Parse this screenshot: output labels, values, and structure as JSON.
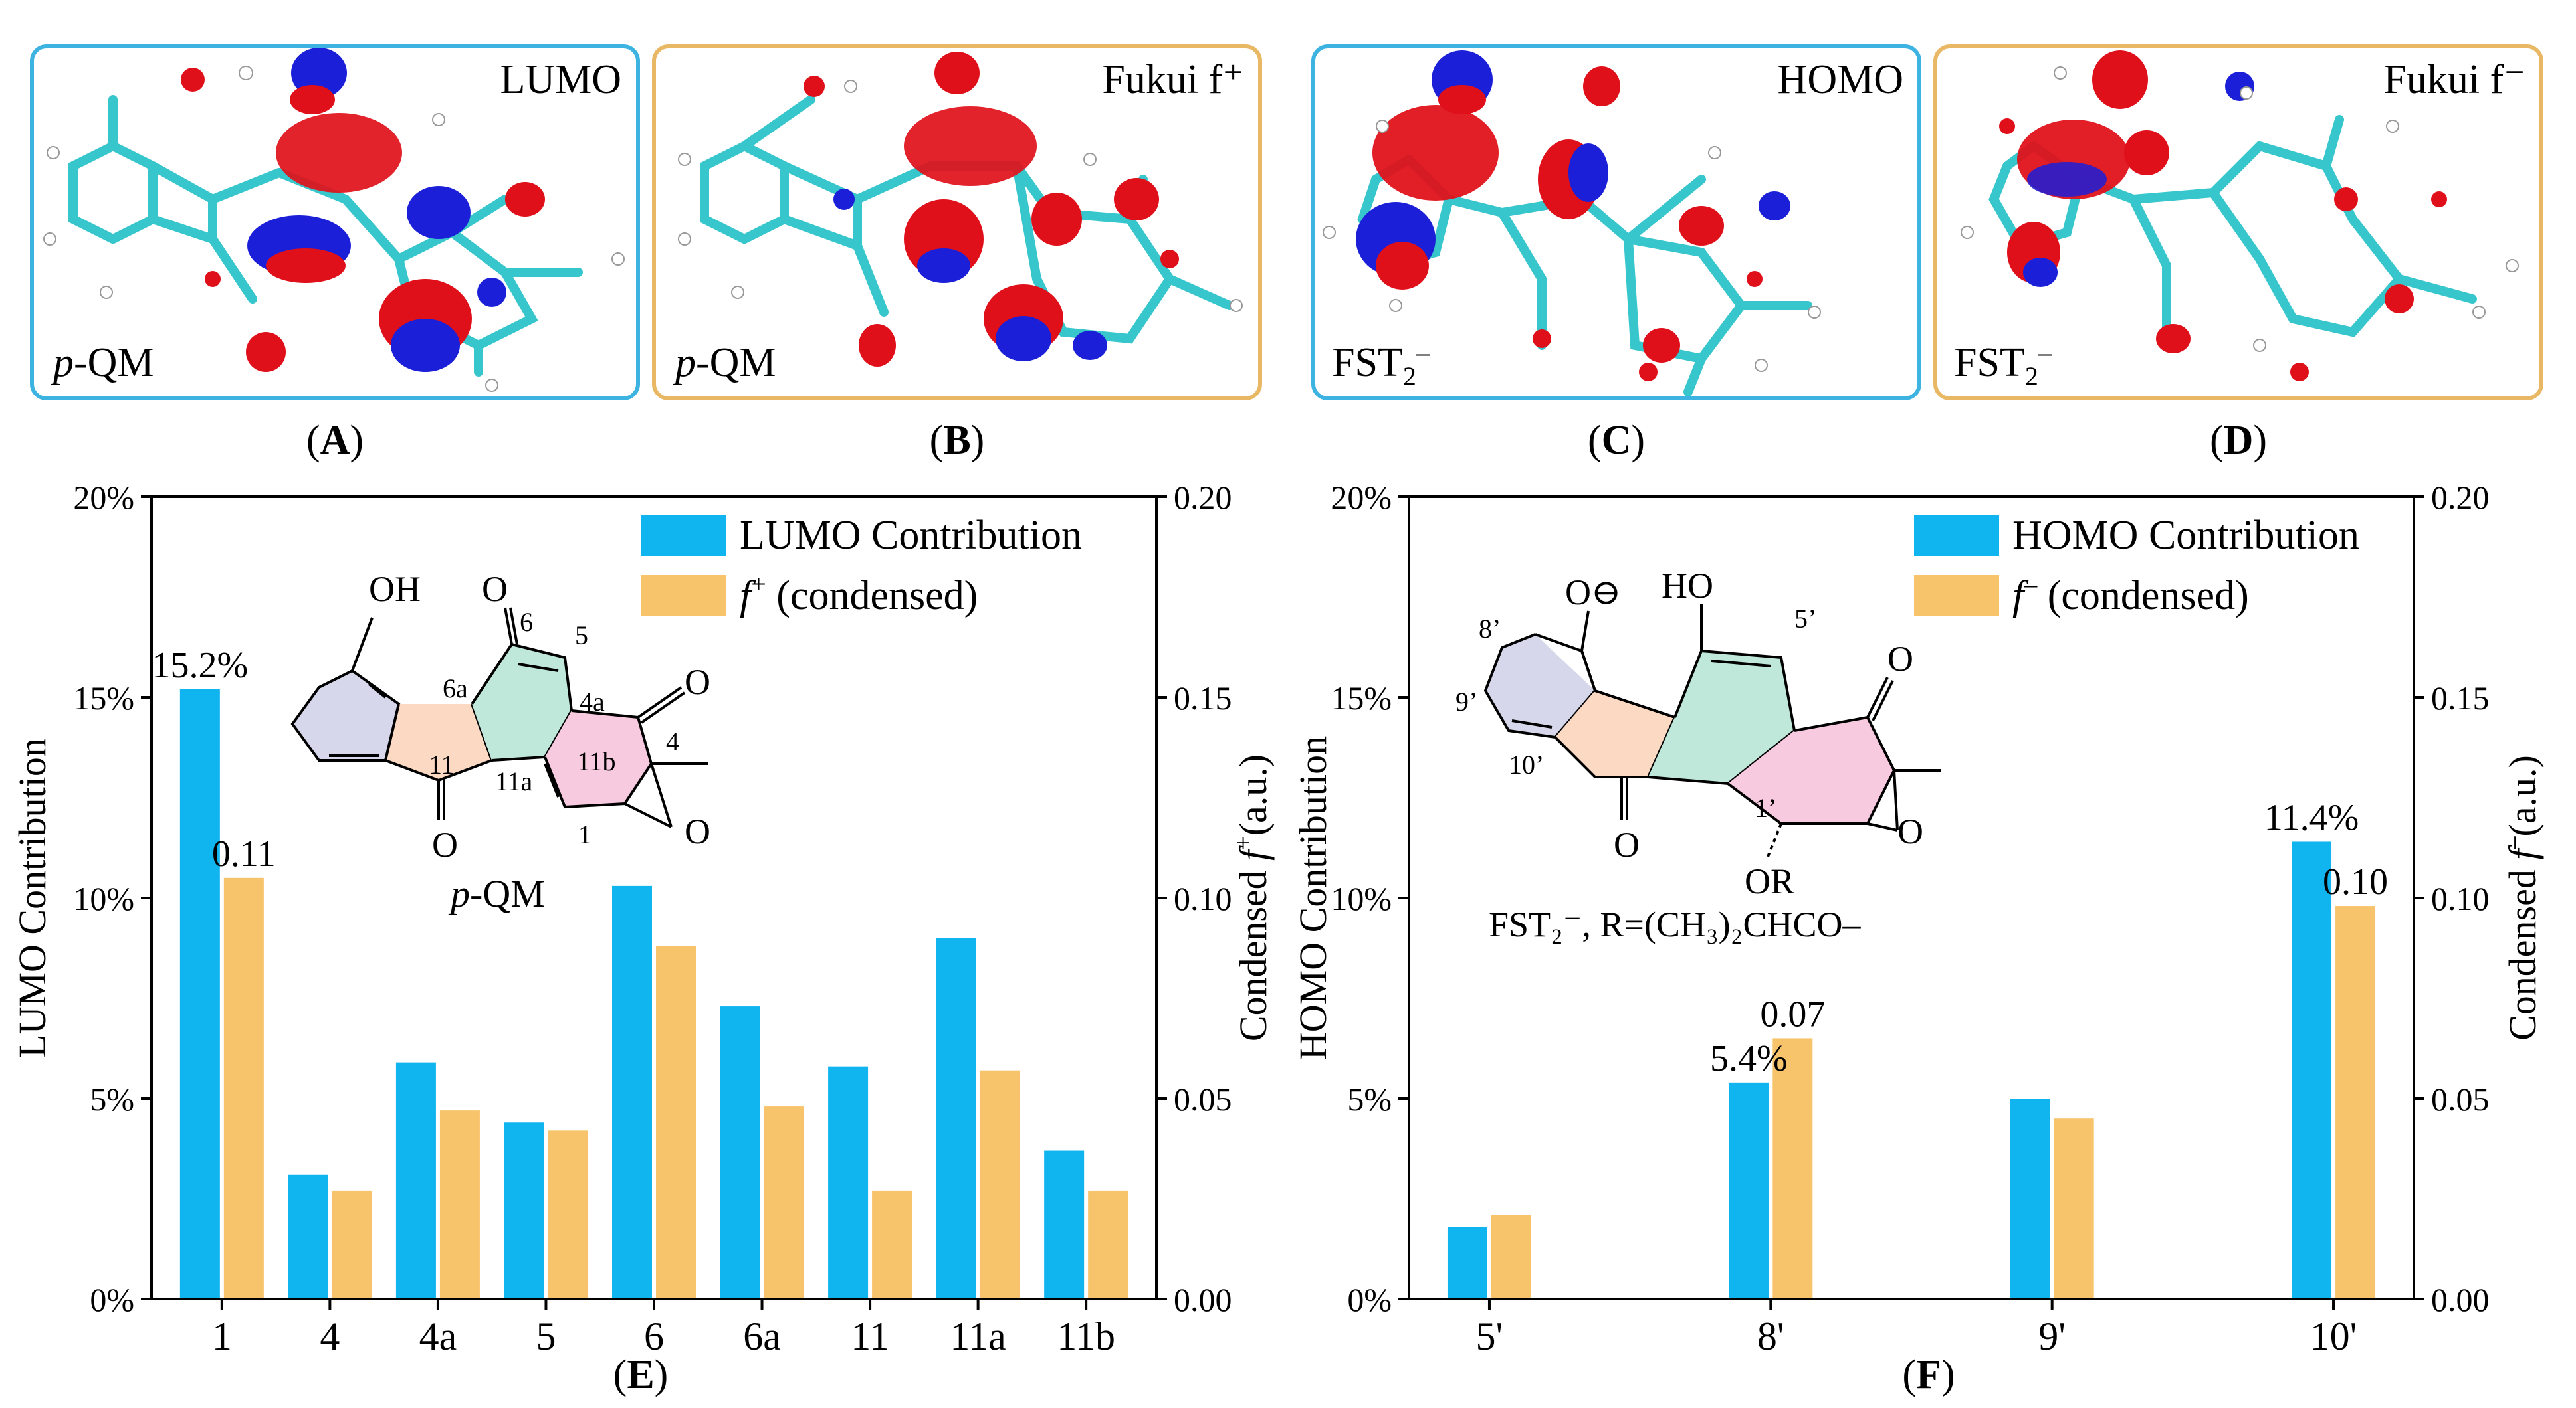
{
  "colors": {
    "blue_bar": "#10B5F0",
    "orange_bar": "#F7C46C",
    "panel_border_blue": "#3DB3E2",
    "panel_border_orange": "#E9B865",
    "atom_carbon": "#36C6CC",
    "lobe_red": "#E0101A",
    "lobe_blue": "#1B1FD8"
  },
  "panels": [
    {
      "id": "A",
      "caption": "A",
      "orbital_label": "LUMO",
      "molecule_label": "p-QM",
      "border": "blue"
    },
    {
      "id": "B",
      "caption": "B",
      "orbital_label": "Fukui f⁺",
      "molecule_label": "p-QM",
      "border": "orange"
    },
    {
      "id": "C",
      "caption": "C",
      "orbital_label": "HOMO",
      "molecule_label": "FST₂⁻",
      "border": "blue"
    },
    {
      "id": "D",
      "caption": "D",
      "orbital_label": "Fukui f⁻",
      "molecule_label": "FST₂⁻",
      "border": "orange"
    }
  ],
  "chart_data": [
    {
      "id": "E",
      "caption": "E",
      "type": "bar",
      "categories": [
        "1",
        "4",
        "4a",
        "5",
        "6",
        "6a",
        "11",
        "11a",
        "11b"
      ],
      "series": [
        {
          "name": "LUMO Contribution",
          "axis": "left",
          "unit": "%",
          "values": [
            15.2,
            3.1,
            5.9,
            4.4,
            10.3,
            7.3,
            5.8,
            9.0,
            3.7
          ]
        },
        {
          "name": "f⁺ (condensed)",
          "axis": "right",
          "values": [
            0.105,
            0.027,
            0.047,
            0.042,
            0.088,
            0.048,
            0.027,
            0.057,
            0.027
          ]
        }
      ],
      "annotations": [
        {
          "series": 0,
          "index": 0,
          "text": "15.2%"
        },
        {
          "series": 1,
          "index": 0,
          "text": "0.11"
        }
      ],
      "ylabel_left": "LUMO Contribution",
      "ylabel_right": "Condensed f⁺ (a.u.)",
      "ylim_left": [
        0,
        20
      ],
      "ylim_right": [
        0,
        0.2
      ],
      "yticks_left": [
        "0%",
        "5%",
        "10%",
        "15%",
        "20%"
      ],
      "yticks_right": [
        "0.00",
        "0.05",
        "0.10",
        "0.15",
        "0.20"
      ],
      "structure_labels": {
        "oh": "OH",
        "o6": "O",
        "n5": "5",
        "n6": "6",
        "n6a": "6a",
        "n4a": "4a",
        "o4": "O",
        "n4": "4",
        "n11": "11",
        "n11a": "11a",
        "n11b": "11b",
        "n1": "1",
        "o11": "O",
        "oep": "O",
        "name": "p-QM"
      }
    },
    {
      "id": "F",
      "caption": "F",
      "type": "bar",
      "categories": [
        "5'",
        "8'",
        "9'",
        "10'"
      ],
      "series": [
        {
          "name": "HOMO Contribution",
          "axis": "left",
          "unit": "%",
          "values": [
            1.8,
            5.4,
            5.0,
            11.4
          ]
        },
        {
          "name": "f⁻ (condensed)",
          "axis": "right",
          "values": [
            0.021,
            0.065,
            0.045,
            0.098
          ]
        }
      ],
      "annotations": [
        {
          "series": 0,
          "index": 1,
          "text": "5.4%"
        },
        {
          "series": 1,
          "index": 1,
          "text": "0.07"
        },
        {
          "series": 0,
          "index": 3,
          "text": "11.4%"
        },
        {
          "series": 1,
          "index": 3,
          "text": "0.10"
        }
      ],
      "ylabel_left": "HOMO Contribution",
      "ylabel_right": "Condensed f⁻ (a.u.)",
      "ylim_left": [
        0,
        20
      ],
      "ylim_right": [
        0,
        0.2
      ],
      "yticks_left": [
        "0%",
        "5%",
        "10%",
        "15%",
        "20%"
      ],
      "yticks_right": [
        "0.00",
        "0.05",
        "0.10",
        "0.15",
        "0.20"
      ],
      "structure_labels": {
        "ominus": "O⊖",
        "ho": "HO",
        "n8": "8’",
        "n5": "5’",
        "n9": "9’",
        "n10": "10’",
        "o_top": "O",
        "o_keto": "O",
        "n1": "1’",
        "oep": "O",
        "or": "OR",
        "formula": "FST₂⁻, R=(CH₃)₂CHCO–"
      }
    }
  ]
}
